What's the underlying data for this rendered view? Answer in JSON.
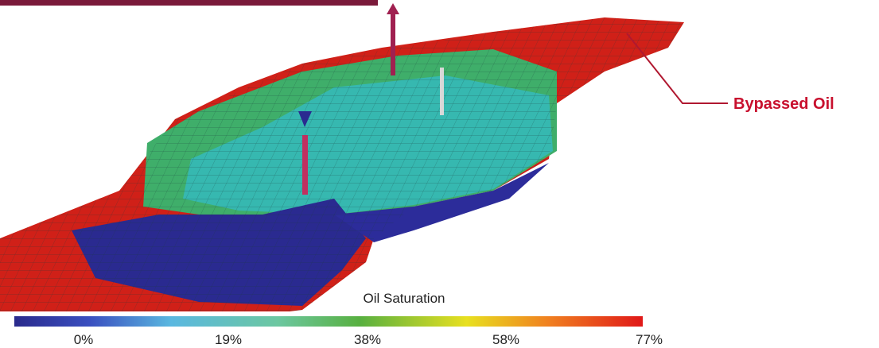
{
  "annotation": "Bypassed Oil",
  "legend": {
    "title": "Oil Saturation",
    "ticks": [
      "0%",
      "19%",
      "38%",
      "58%",
      "77%"
    ]
  }
}
